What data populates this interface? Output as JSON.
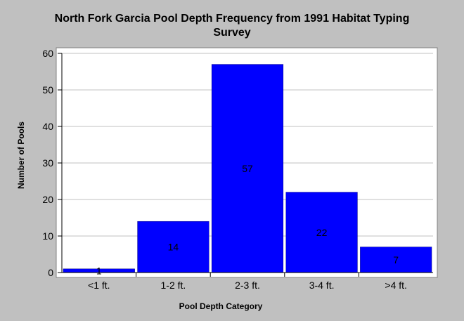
{
  "chart_data": {
    "type": "bar",
    "title_line1": "North Fork Garcia Pool Depth Frequency from 1991 Habitat Typing",
    "title_line2": "Survey",
    "xlabel": "Pool Depth Category",
    "ylabel": "Number of Pools",
    "categories": [
      "<1 ft.",
      "1-2 ft.",
      "2-3 ft.",
      "3-4 ft.",
      ">4 ft."
    ],
    "values": [
      1,
      14,
      57,
      22,
      7
    ],
    "ylim": [
      0,
      60
    ],
    "yticks": [
      0,
      10,
      20,
      30,
      40,
      50,
      60
    ],
    "grid": true,
    "legend": "none",
    "bar_color": "#0000ff",
    "plot_background": "#ffffff",
    "page_background": "#c0c0c0",
    "grid_color": "#c0c0c0"
  }
}
